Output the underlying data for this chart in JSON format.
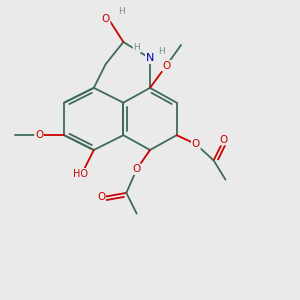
{
  "bg_color": "#eaeaea",
  "bond_color": "#3d6b58",
  "bond_width": 1.3,
  "atom_colors": {
    "O": "#cc0000",
    "N": "#0000bb",
    "H": "#7a9090",
    "C": "#3d6b58"
  },
  "figsize": [
    3.0,
    3.0
  ],
  "dpi": 100
}
